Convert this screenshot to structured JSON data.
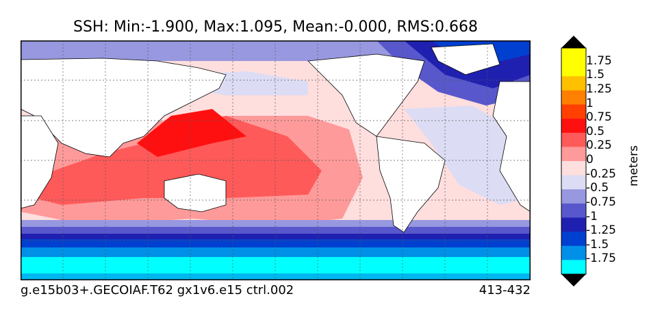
{
  "title": "SSH: Min:-1.900, Max:1.095, Mean:-0.000, RMS:0.668",
  "footer": {
    "case": "g.e15b03+.GECOIAF.T62 gx1v6.e15 ctrl.002",
    "years": "413-432"
  },
  "colorbar": {
    "units": "meters",
    "ticks": [
      "1.75",
      "1.5",
      "1.25",
      "1",
      "0.75",
      "0.5",
      "0.25",
      "0",
      "-0.25",
      "-0.5",
      "-0.75",
      "-1",
      "-1.25",
      "-1.5",
      "-1.75"
    ],
    "colors": [
      "#ffff00",
      "#ffc000",
      "#ff8000",
      "#ff4000",
      "#ff1010",
      "#ff5a5a",
      "#ff9a9a",
      "#ffdede",
      "#dcdcf4",
      "#9898e0",
      "#5858cc",
      "#2020b0",
      "#0040d0",
      "#0090e8",
      "#00ffff"
    ],
    "top_cap": "#000000",
    "bottom_cap": "#000000"
  },
  "map": {
    "land_color": "#ffffff",
    "grid": "dotted"
  }
}
